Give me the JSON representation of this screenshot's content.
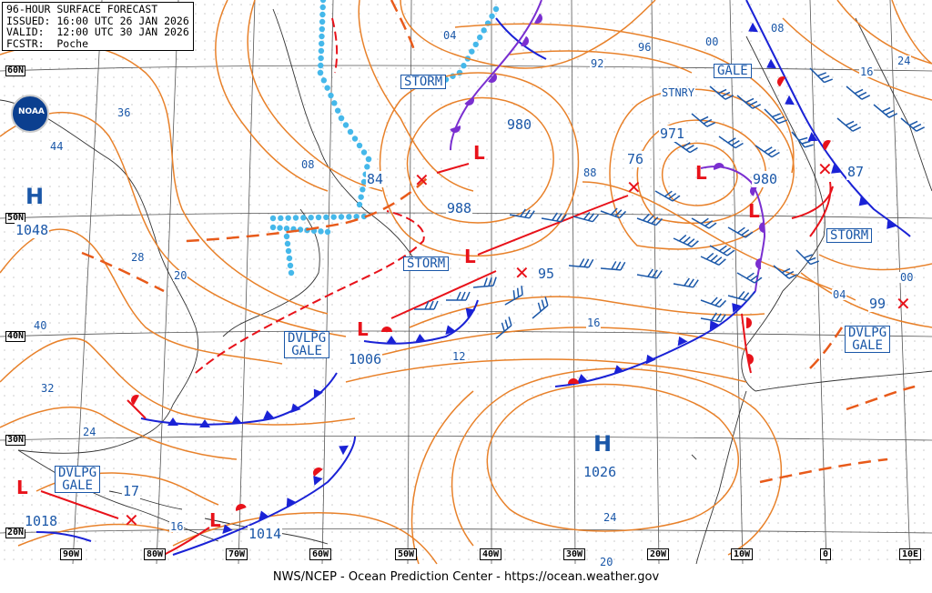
{
  "header": {
    "line1": "96-HOUR SURFACE FORECAST",
    "line2": "ISSUED: 16:00 UTC 26 JAN 2026",
    "line3": "VALID:  12:00 UTC 30 JAN 2026",
    "line4": "FCSTR:  Poche"
  },
  "footer": "NWS/NCEP - Ocean Prediction Center - https://ocean.weather.gov",
  "logo_text": "NOAA",
  "latitudes": [
    "60N",
    "50N",
    "40N",
    "30N",
    "20N"
  ],
  "longitudes": [
    "90W",
    "80W",
    "70W",
    "60W",
    "50W",
    "40W",
    "30W",
    "20W",
    "10W",
    "0",
    "10E"
  ],
  "highs": [
    {
      "symbol": "H",
      "pressure": "1048"
    },
    {
      "symbol": "H",
      "pressure": "1026"
    }
  ],
  "lows": [
    {
      "symbol": "L",
      "pressure": "980"
    },
    {
      "symbol": "L",
      "pressure": "971"
    },
    {
      "symbol": "L",
      "pressure": "980"
    },
    {
      "symbol": "L",
      "pressure": "1006"
    },
    {
      "symbol": "L",
      "pressure": "1018"
    },
    {
      "symbol": "L",
      "pressure": "1014"
    },
    {
      "symbol": "L",
      "pressure": ""
    }
  ],
  "prev_low_pressures": [
    "84",
    "76",
    "87",
    "95",
    "99",
    "17",
    "988"
  ],
  "warnings": {
    "storm1": "STORM",
    "storm2": "STORM",
    "storm3": "STORM",
    "gale1": "GALE",
    "dvlpg1": "DVLPG\nGALE",
    "dvlpg2": "DVLPG\nGALE",
    "dvlpg3": "DVLPG\nGALE",
    "stnry": "STNRY"
  },
  "isobar_labels": [
    "04",
    "96",
    "00",
    "08",
    "16",
    "24",
    "92",
    "36",
    "44",
    "08",
    "28",
    "20",
    "40",
    "32",
    "24",
    "88",
    "16",
    "12",
    "04",
    "00",
    "24",
    "20",
    "16"
  ],
  "colors": {
    "isobar": "#e8812a",
    "label_blue": "#1a57a8",
    "low_red": "#e8121a",
    "cold_front": "#1a22d6",
    "occluded": "#7a2fd0",
    "ice": "#45b8ea",
    "grid": "#555555"
  }
}
